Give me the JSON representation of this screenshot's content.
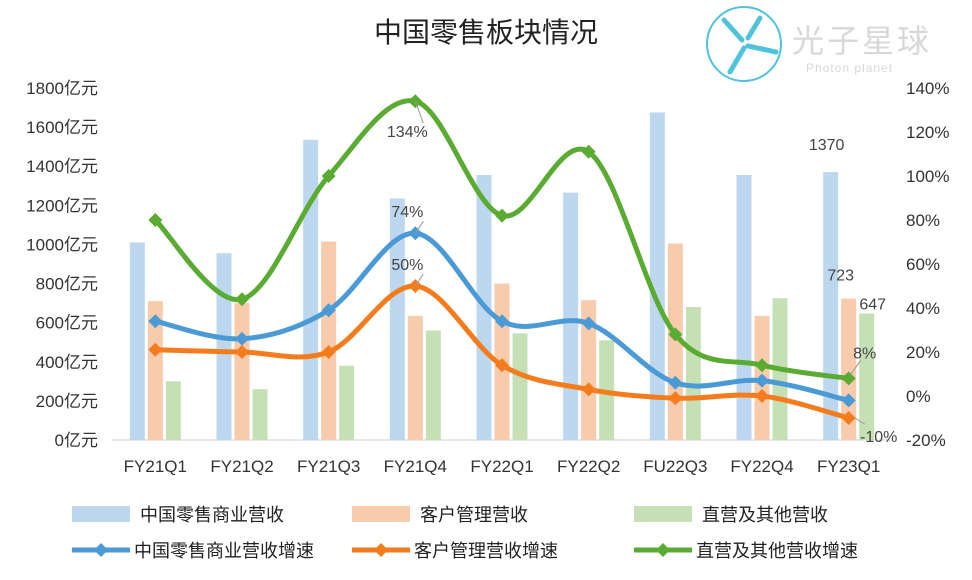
{
  "chart_data": {
    "type": "bar",
    "title": "中国零售板块情况",
    "categories": [
      "FY21Q1",
      "FY21Q2",
      "FY21Q3",
      "FY21Q4",
      "FY22Q1",
      "FY22Q2",
      "FU22Q3",
      "FY22Q4",
      "FY23Q1"
    ],
    "left_axis": {
      "min": 0,
      "max": 1800,
      "step": 200,
      "tick_labels": [
        "0亿元",
        "200亿元",
        "400亿元",
        "600亿元",
        "800亿元",
        "1000亿元",
        "1200亿元",
        "1400亿元",
        "1600亿元",
        "1800亿元"
      ]
    },
    "right_axis": {
      "min": -20,
      "max": 140,
      "step": 20,
      "tick_labels": [
        "-20%",
        "0%",
        "20%",
        "40%",
        "60%",
        "80%",
        "100%",
        "120%",
        "140%"
      ]
    },
    "bar_series": [
      {
        "name": "中国零售商业营收",
        "color": "#bdd7ee",
        "values": [
          1010,
          955,
          1535,
          1235,
          1355,
          1265,
          1675,
          1355,
          1370
        ]
      },
      {
        "name": "客户管理营收",
        "color": "#f8cbad",
        "values": [
          710,
          700,
          1015,
          635,
          800,
          715,
          1005,
          635,
          723
        ]
      },
      {
        "name": "直营及其他营收",
        "color": "#c5e0b4",
        "values": [
          300,
          260,
          380,
          560,
          545,
          510,
          680,
          725,
          647
        ]
      }
    ],
    "line_series": [
      {
        "name": "中国零售商业营收增速",
        "color": "#4a9ad6",
        "values": [
          34,
          26,
          39,
          74,
          34,
          33,
          6,
          7,
          -2
        ]
      },
      {
        "name": "客户管理营收增速",
        "color": "#f57c1c",
        "values": [
          21,
          20,
          20,
          50,
          14,
          3,
          -1,
          0,
          -10
        ]
      },
      {
        "name": "直营及其他营收增速",
        "color": "#5aab32",
        "values": [
          80,
          44,
          100,
          134,
          82,
          111,
          28,
          14,
          8
        ]
      }
    ],
    "data_labels": [
      {
        "text": "134%",
        "series": 2,
        "index": 3
      },
      {
        "text": "74%",
        "series": 0,
        "index": 3
      },
      {
        "text": "50%",
        "series": 1,
        "index": 3
      },
      {
        "text": "1370",
        "bar": 0,
        "index": 8
      },
      {
        "text": "723",
        "bar": 1,
        "index": 8
      },
      {
        "text": "647",
        "bar": 2,
        "index": 8
      },
      {
        "text": "8%",
        "series": 2,
        "index": 8
      },
      {
        "text": "-10%",
        "series": 1,
        "index": 8,
        "color": "#e00000"
      }
    ],
    "legend_position": "bottom"
  },
  "watermark": {
    "text": "光子星球",
    "sub": "Photon planet",
    "color": "#4fc3d9"
  }
}
